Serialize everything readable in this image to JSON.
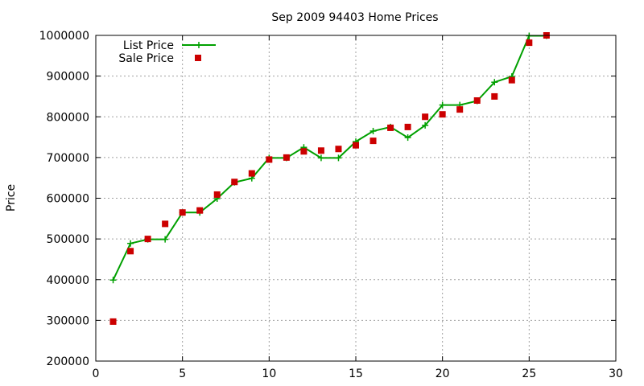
{
  "chart_data": {
    "type": "scatter",
    "title": "Sep 2009 94403 Home Prices",
    "xlabel": "",
    "ylabel": "Price",
    "xlim": [
      0,
      30
    ],
    "ylim": [
      200000,
      1000000
    ],
    "xticks": [
      "0",
      "5",
      "10",
      "15",
      "20",
      "25",
      "30"
    ],
    "yticks": [
      "200000",
      "300000",
      "400000",
      "500000",
      "600000",
      "700000",
      "800000",
      "900000",
      "1000000"
    ],
    "grid": true,
    "legend_position": "top-left",
    "series": [
      {
        "name": "List Price",
        "type": "line",
        "color": "#00a000",
        "marker": "plus",
        "x": [
          1,
          2,
          3,
          4,
          5,
          6,
          7,
          8,
          9,
          10,
          11,
          12,
          13,
          14,
          15,
          16,
          17,
          18,
          19,
          20,
          21,
          22,
          23,
          24,
          25,
          26
        ],
        "values": [
          399000,
          489000,
          499000,
          499000,
          565000,
          565000,
          599000,
          639000,
          649000,
          699000,
          699000,
          725000,
          699000,
          699000,
          739000,
          765000,
          775000,
          749000,
          779000,
          829000,
          829000,
          839000,
          885000,
          899000,
          999000,
          999000
        ]
      },
      {
        "name": "Sale Price",
        "type": "scatter",
        "color": "#cc0000",
        "marker": "square",
        "x": [
          1,
          2,
          3,
          4,
          5,
          6,
          7,
          8,
          9,
          10,
          11,
          12,
          13,
          14,
          15,
          16,
          17,
          18,
          19,
          20,
          21,
          22,
          23,
          24,
          25,
          26
        ],
        "values": [
          297000,
          470000,
          500000,
          537000,
          565000,
          570000,
          609000,
          640000,
          661000,
          695000,
          700000,
          715000,
          717000,
          721000,
          730000,
          741000,
          773000,
          775000,
          800000,
          806000,
          818000,
          840000,
          850000,
          890000,
          982000,
          1000000
        ]
      }
    ]
  }
}
